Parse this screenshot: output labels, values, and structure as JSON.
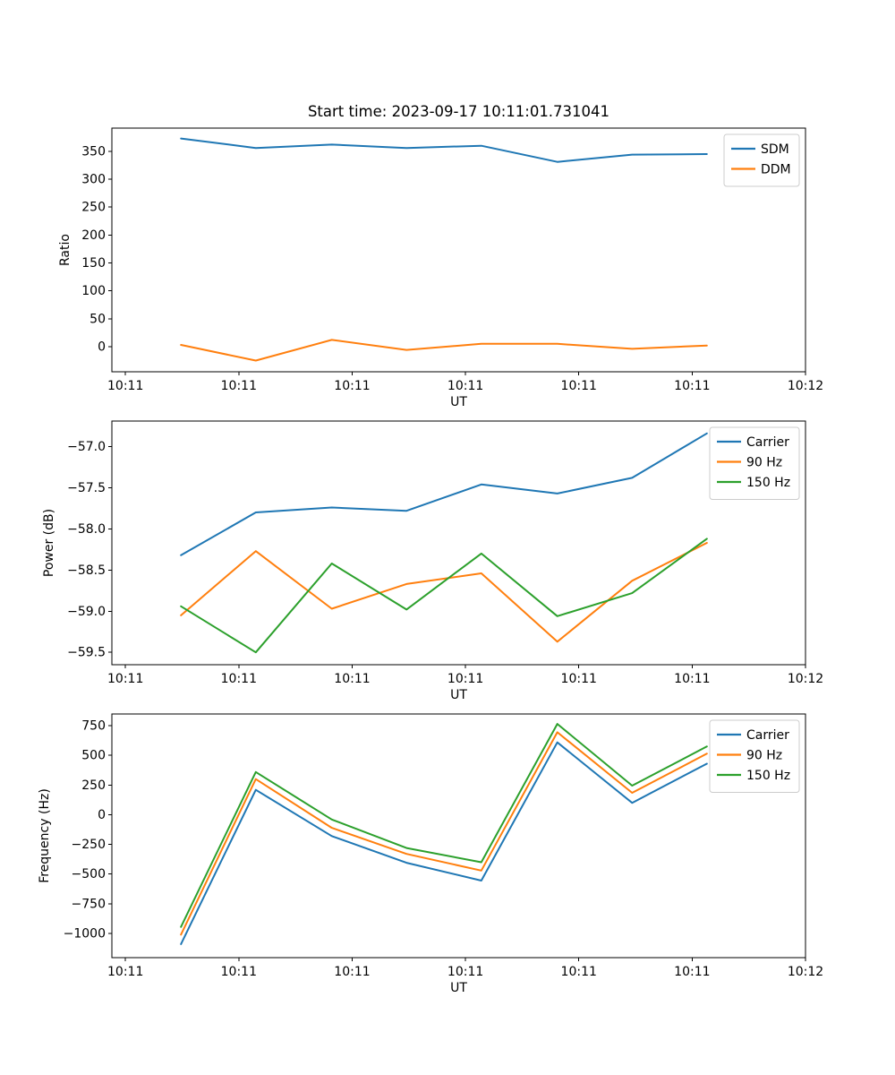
{
  "figure": {
    "title": "Start time: 2023-09-17 10:11:01.731041",
    "background": "#ffffff",
    "text_color": "#000000",
    "spine_color": "#000000",
    "legend_border_color": "#cccccc"
  },
  "colors": {
    "blue": "#1f77b4",
    "orange": "#ff7f0e",
    "green": "#2ca02c"
  },
  "chart_data": [
    {
      "id": "ratio",
      "type": "line",
      "title": "Start time: 2023-09-17 10:11:01.731041",
      "xlabel": "UT",
      "ylabel": "Ratio",
      "x_seconds_after_10_11": [
        4.9,
        11.5,
        18.2,
        24.8,
        31.4,
        38.1,
        44.7,
        51.3
      ],
      "xtick_seconds": [
        0,
        10,
        20,
        30,
        40,
        50,
        60
      ],
      "xtick_labels": [
        "10:11",
        "10:11",
        "10:11",
        "10:11",
        "10:11",
        "10:11",
        "10:12"
      ],
      "ytick_values": [
        0,
        50,
        100,
        150,
        200,
        250,
        300,
        350
      ],
      "ytick_labels": [
        "0",
        "50",
        "100",
        "150",
        "200",
        "250",
        "300",
        "350"
      ],
      "ylim": [
        -45.1,
        391.6
      ],
      "grid": false,
      "legend_position": "upper right",
      "series": [
        {
          "name": "SDM",
          "color": "#1f77b4",
          "values": [
            373,
            356,
            362,
            356,
            360,
            331,
            344,
            345
          ]
        },
        {
          "name": "DDM",
          "color": "#ff7f0e",
          "values": [
            3,
            -25,
            12,
            -6,
            5,
            5,
            -4,
            2
          ]
        }
      ]
    },
    {
      "id": "power",
      "type": "line",
      "title": "",
      "xlabel": "UT",
      "ylabel": "Power (dB)",
      "x_seconds_after_10_11": [
        4.9,
        11.5,
        18.2,
        24.8,
        31.4,
        38.1,
        44.7,
        51.3
      ],
      "xtick_seconds": [
        0,
        10,
        20,
        30,
        40,
        50,
        60
      ],
      "xtick_labels": [
        "10:11",
        "10:11",
        "10:11",
        "10:11",
        "10:11",
        "10:11",
        "10:12"
      ],
      "ytick_values": [
        -57.0,
        -57.5,
        -58.0,
        -58.5,
        -59.0,
        -59.5
      ],
      "ytick_labels": [
        "−57.0",
        "−57.5",
        "−58.0",
        "−58.5",
        "−59.0",
        "−59.5"
      ],
      "ylim": [
        -59.65,
        -56.69
      ],
      "grid": false,
      "legend_position": "upper right",
      "series": [
        {
          "name": "Carrier",
          "color": "#1f77b4",
          "values": [
            -58.32,
            -57.8,
            -57.74,
            -57.78,
            -57.46,
            -57.57,
            -57.38,
            -56.84
          ]
        },
        {
          "name": "90 Hz",
          "color": "#ff7f0e",
          "values": [
            -59.05,
            -58.27,
            -58.97,
            -58.67,
            -58.54,
            -59.37,
            -58.63,
            -58.17
          ]
        },
        {
          "name": "150 Hz",
          "color": "#2ca02c",
          "values": [
            -58.94,
            -59.5,
            -58.42,
            -58.98,
            -58.3,
            -59.06,
            -58.78,
            -58.12
          ]
        }
      ]
    },
    {
      "id": "frequency",
      "type": "line",
      "title": "",
      "xlabel": "UT",
      "ylabel": "Frequency (Hz)",
      "x_seconds_after_10_11": [
        4.9,
        11.5,
        18.2,
        24.8,
        31.4,
        38.1,
        44.7,
        51.3
      ],
      "xtick_seconds": [
        0,
        10,
        20,
        30,
        40,
        50,
        60
      ],
      "xtick_labels": [
        "10:11",
        "10:11",
        "10:11",
        "10:11",
        "10:11",
        "10:11",
        "10:12"
      ],
      "ytick_values": [
        750,
        500,
        250,
        0,
        -250,
        -500,
        -750,
        -1000
      ],
      "ytick_labels": [
        "750",
        "500",
        "250",
        "0",
        "−250",
        "−500",
        "−750",
        "−1000"
      ],
      "ylim": [
        -1204,
        849
      ],
      "grid": false,
      "legend_position": "upper right",
      "series": [
        {
          "name": "Carrier",
          "color": "#1f77b4",
          "values": [
            -1090,
            210,
            -180,
            -405,
            -555,
            610,
            100,
            430
          ]
        },
        {
          "name": "90 Hz",
          "color": "#ff7f0e",
          "values": [
            -1010,
            300,
            -110,
            -330,
            -470,
            695,
            185,
            515
          ]
        },
        {
          "name": "150 Hz",
          "color": "#2ca02c",
          "values": [
            -945,
            360,
            -40,
            -280,
            -400,
            765,
            245,
            575
          ]
        }
      ]
    }
  ]
}
